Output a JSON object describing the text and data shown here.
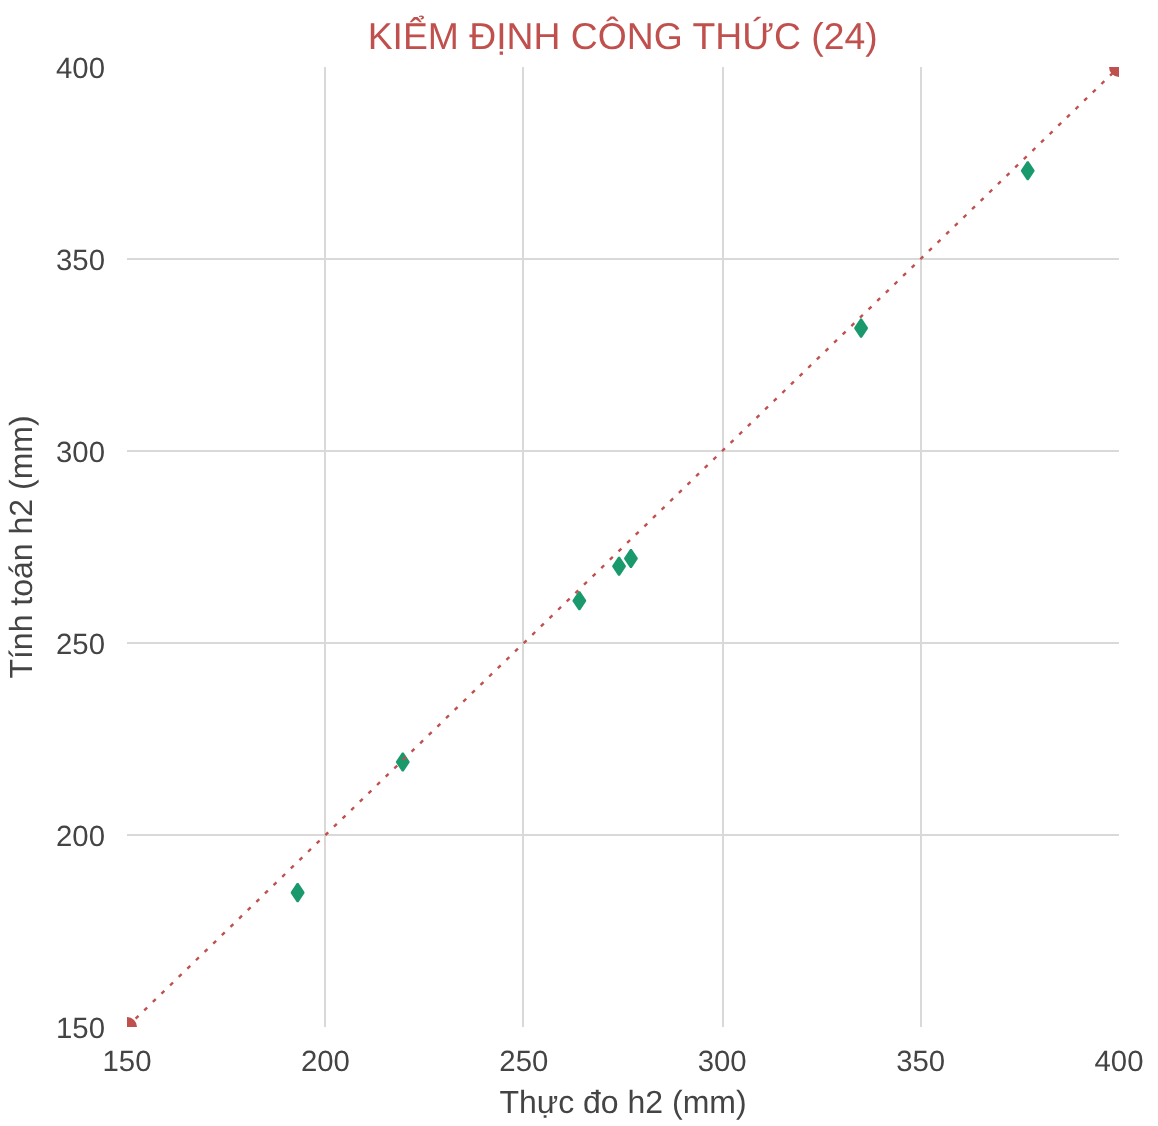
{
  "chart_data": {
    "type": "scatter",
    "title": "KIỂM ĐỊNH CÔNG THỨC (24)",
    "xlabel": "Thực đo h2 (mm)",
    "ylabel": "Tính toán h2 (mm)",
    "series": [
      {
        "color": "#1a9a6c",
        "x": [
          193,
          219.5,
          264,
          274,
          277,
          335,
          377
        ],
        "values": [
          185,
          219,
          261,
          270,
          272,
          332,
          373
        ],
        "marker": "diamond"
      },
      {
        "type": "line",
        "color": "#c0504d",
        "x": [
          150,
          400
        ],
        "values": [
          150,
          400
        ],
        "marker": "circle",
        "line_style": "dotted"
      }
    ],
    "xlim": [
      150,
      400
    ],
    "ylim": [
      150,
      400
    ],
    "xticks": [
      150,
      200,
      250,
      300,
      350,
      400
    ],
    "yticks": [
      150,
      200,
      250,
      300,
      350,
      400
    ],
    "grid": true
  }
}
